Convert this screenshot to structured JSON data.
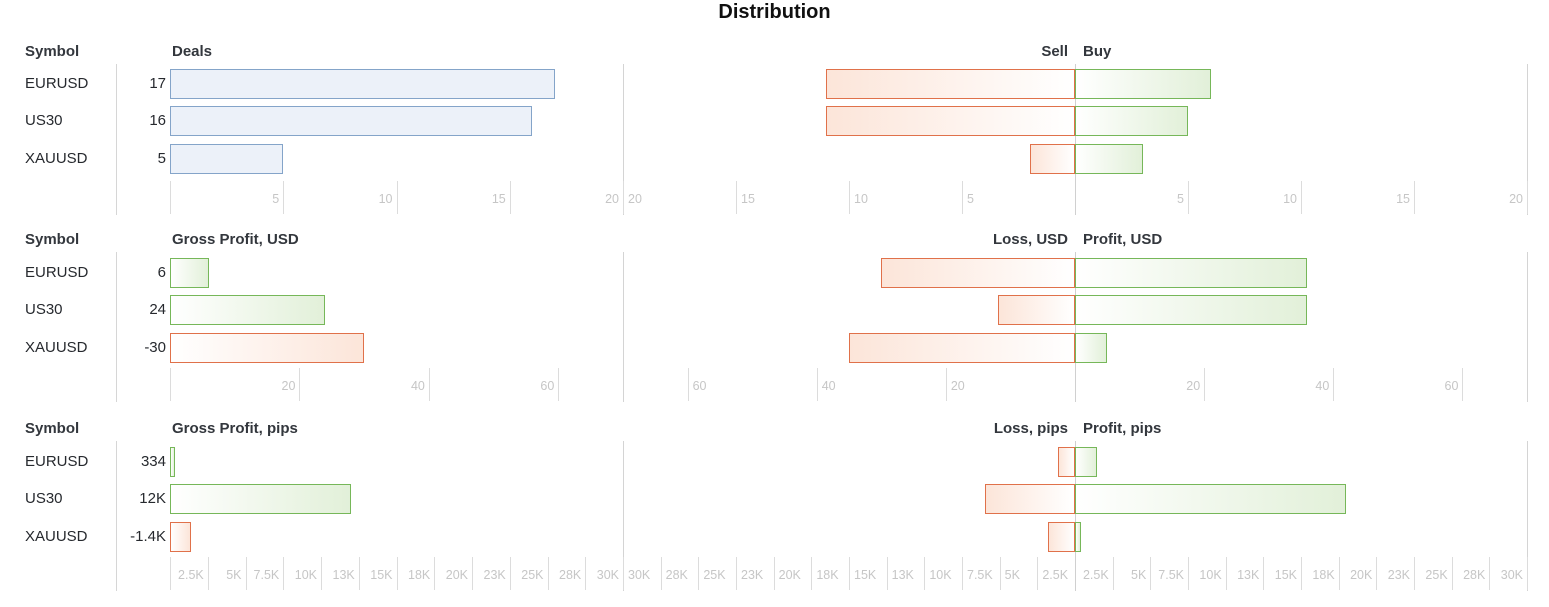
{
  "title": "Distribution",
  "colors": {
    "blue_fill": "#ecf1f9",
    "blue_border": "#84a4c9",
    "green_fill": "#e2f0d9",
    "green_border": "#76b759",
    "red_fill": "#fce5d9",
    "red_border": "#e0714a",
    "tick_text": "#c6c6c6",
    "grid_line": "#dcdcdc",
    "boundary_line": "#d4d4d4",
    "center_line": "#d0d0d0",
    "separator_line": "#d6d6d6",
    "header_text": "#33373d",
    "body_text": "#26292e",
    "title_text": "#101010"
  },
  "chart_data": [
    {
      "type": "bar",
      "id": "deals",
      "symbol_header": "Symbol",
      "value_header": "Deals",
      "neg_header": "Sell",
      "pos_header": "Buy",
      "axis_max": 20,
      "ticks": [
        {
          "v": 5,
          "label": "5"
        },
        {
          "v": 10,
          "label": "10"
        },
        {
          "v": 15,
          "label": "15"
        },
        {
          "v": 20,
          "label": "20"
        }
      ],
      "rows": [
        {
          "symbol": "EURUSD",
          "value": 17,
          "value_label": "17",
          "bar_color": "blue",
          "neg": 11,
          "pos": 6
        },
        {
          "symbol": "US30",
          "value": 16,
          "value_label": "16",
          "bar_color": "blue",
          "neg": 11,
          "pos": 5
        },
        {
          "symbol": "XAUUSD",
          "value": 5,
          "value_label": "5",
          "bar_color": "blue",
          "neg": 2,
          "pos": 3
        }
      ]
    },
    {
      "type": "bar",
      "id": "gross-profit-usd",
      "symbol_header": "Symbol",
      "value_header": "Gross Profit, USD",
      "neg_header": "Loss, USD",
      "pos_header": "Profit, USD",
      "axis_max": 70,
      "ticks": [
        {
          "v": 20,
          "label": "20"
        },
        {
          "v": 40,
          "label": "40"
        },
        {
          "v": 60,
          "label": "60"
        }
      ],
      "rows": [
        {
          "symbol": "EURUSD",
          "value": 6,
          "value_label": "6",
          "bar_color": "green",
          "neg": 30,
          "pos": 36
        },
        {
          "symbol": "US30",
          "value": 24,
          "value_label": "24",
          "bar_color": "green",
          "neg": 12,
          "pos": 36
        },
        {
          "symbol": "XAUUSD",
          "value": -30,
          "value_label": "-30",
          "bar_color": "red",
          "neg": 35,
          "pos": 5
        }
      ]
    },
    {
      "type": "bar",
      "id": "gross-profit-pips",
      "symbol_header": "Symbol",
      "value_header": "Gross Profit, pips",
      "neg_header": "Loss, pips",
      "pos_header": "Profit, pips",
      "axis_max": 30000,
      "ticks": [
        {
          "v": 2500,
          "label": "2.5K"
        },
        {
          "v": 5000,
          "label": "5K"
        },
        {
          "v": 7500,
          "label": "7.5K"
        },
        {
          "v": 10000,
          "label": "10K"
        },
        {
          "v": 12500,
          "label": "13K"
        },
        {
          "v": 15000,
          "label": "15K"
        },
        {
          "v": 17500,
          "label": "18K"
        },
        {
          "v": 20000,
          "label": "20K"
        },
        {
          "v": 22500,
          "label": "23K"
        },
        {
          "v": 25000,
          "label": "25K"
        },
        {
          "v": 27500,
          "label": "28K"
        },
        {
          "v": 30000,
          "label": "30K"
        }
      ],
      "rows": [
        {
          "symbol": "EURUSD",
          "value": 334,
          "value_label": "334",
          "bar_color": "green",
          "neg": 1100,
          "pos": 1430
        },
        {
          "symbol": "US30",
          "value": 12000,
          "value_label": "12K",
          "bar_color": "green",
          "neg": 6000,
          "pos": 18000
        },
        {
          "symbol": "XAUUSD",
          "value": -1400,
          "value_label": "-1.4K",
          "bar_color": "red",
          "neg": 1800,
          "pos": 400
        }
      ]
    }
  ]
}
